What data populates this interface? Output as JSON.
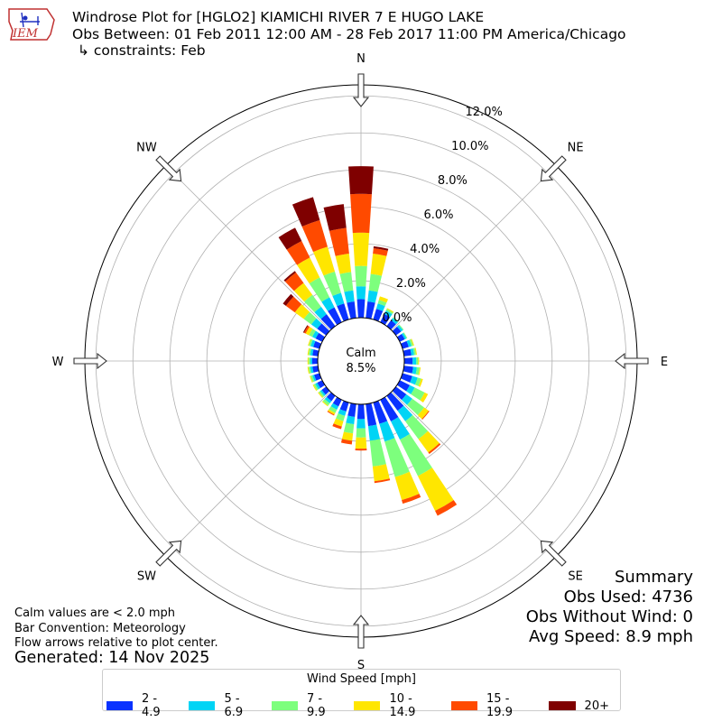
{
  "header": {
    "line1": "Windrose Plot for [HGLO2] KIAMICHI RIVER 7 E HUGO LAKE",
    "line2": "Obs Between: 01 Feb 2011 12:00 AM - 28 Feb 2017 11:00 PM America/Chicago",
    "line3": "↳ constraints: Feb"
  },
  "logo": {
    "text": "IEM",
    "icon": "iowa-state-outline-icon"
  },
  "center": {
    "label": "Calm",
    "value": "8.5%"
  },
  "notes": {
    "calm": "Calm values are < 2.0 mph",
    "convention": "Bar Convention: Meteorology",
    "flow": "Flow arrows relative to plot center.",
    "generated": "Generated: 14 Nov 2025"
  },
  "summary": {
    "title": "Summary",
    "obs_used": "Obs Used: 4736",
    "obs_without_wind": "Obs Without Wind: 0",
    "avg_speed": "Avg Speed: 8.9 mph"
  },
  "legend": {
    "title": "Wind Speed [mph]",
    "items": [
      {
        "label": "2 - 4.9",
        "color": "#0a32ff"
      },
      {
        "label": "5 - 6.9",
        "color": "#00d4f5"
      },
      {
        "label": "7 - 9.9",
        "color": "#7dff7d"
      },
      {
        "label": "10 - 14.9",
        "color": "#ffe600"
      },
      {
        "label": "15 - 19.9",
        "color": "#ff4a00"
      },
      {
        "label": "20+",
        "color": "#7f0000"
      }
    ]
  },
  "chart_data": {
    "type": "windrose",
    "radial_ticks": [
      "0.0%",
      "2.0%",
      "4.0%",
      "6.0%",
      "8.0%",
      "10.0%",
      "12.0%"
    ],
    "radial_range": [
      0,
      12.6
    ],
    "radial_units": "%",
    "directions": [
      "N",
      "NE",
      "E",
      "SE",
      "S",
      "SW",
      "W",
      "NW"
    ],
    "bins": [
      "2 - 4.9",
      "5 - 6.9",
      "7 - 9.9",
      "10 - 14.9",
      "15 - 19.9",
      "20+"
    ],
    "colors": [
      "#0a32ff",
      "#00d4f5",
      "#7dff7d",
      "#ffe600",
      "#ff4a00",
      "#7f0000"
    ],
    "sectors": [
      {
        "dir": 0,
        "values": [
          1.0,
          0.7,
          1.1,
          1.8,
          2.1,
          1.5
        ]
      },
      {
        "dir": 10,
        "values": [
          0.9,
          0.6,
          0.9,
          1.1,
          0.3,
          0.1
        ]
      },
      {
        "dir": 20,
        "values": [
          0.6,
          0.3,
          0.2,
          0.2,
          0.0,
          0.0
        ]
      },
      {
        "dir": 30,
        "values": [
          0.5,
          0.2,
          0.1,
          0.05,
          0.0,
          0.0
        ]
      },
      {
        "dir": 40,
        "values": [
          0.4,
          0.15,
          0.05,
          0.0,
          0.0,
          0.0
        ]
      },
      {
        "dir": 50,
        "values": [
          0.35,
          0.12,
          0.05,
          0.0,
          0.0,
          0.0
        ]
      },
      {
        "dir": 60,
        "values": [
          0.3,
          0.1,
          0.05,
          0.0,
          0.0,
          0.0
        ]
      },
      {
        "dir": 70,
        "values": [
          0.35,
          0.15,
          0.1,
          0.05,
          0.0,
          0.0
        ]
      },
      {
        "dir": 80,
        "values": [
          0.4,
          0.15,
          0.1,
          0.05,
          0.0,
          0.0
        ]
      },
      {
        "dir": 90,
        "values": [
          0.45,
          0.2,
          0.1,
          0.05,
          0.0,
          0.0
        ]
      },
      {
        "dir": 100,
        "values": [
          0.5,
          0.2,
          0.15,
          0.05,
          0.0,
          0.0
        ]
      },
      {
        "dir": 110,
        "values": [
          0.55,
          0.3,
          0.2,
          0.1,
          0.0,
          0.0
        ]
      },
      {
        "dir": 120,
        "values": [
          0.6,
          0.3,
          0.6,
          0.2,
          0.0,
          0.0
        ]
      },
      {
        "dir": 130,
        "values": [
          0.7,
          0.4,
          0.8,
          0.3,
          0.05,
          0.0
        ]
      },
      {
        "dir": 140,
        "values": [
          1.0,
          0.7,
          1.2,
          0.9,
          0.1,
          0.0
        ]
      },
      {
        "dir": 150,
        "values": [
          1.3,
          1.1,
          2.2,
          2.1,
          0.3,
          0.0
        ]
      },
      {
        "dir": 160,
        "values": [
          1.2,
          1.0,
          2.0,
          1.3,
          0.2,
          0.0
        ]
      },
      {
        "dir": 170,
        "values": [
          1.2,
          0.8,
          1.4,
          0.8,
          0.1,
          0.0
        ]
      },
      {
        "dir": 180,
        "values": [
          0.8,
          0.5,
          0.5,
          0.6,
          0.1,
          0.0
        ]
      },
      {
        "dir": 190,
        "values": [
          0.7,
          0.4,
          0.5,
          0.4,
          0.2,
          0.0
        ]
      },
      {
        "dir": 200,
        "values": [
          0.5,
          0.25,
          0.3,
          0.3,
          0.15,
          0.0
        ]
      },
      {
        "dir": 210,
        "values": [
          0.4,
          0.2,
          0.2,
          0.1,
          0.05,
          0.0
        ]
      },
      {
        "dir": 220,
        "values": [
          0.35,
          0.15,
          0.15,
          0.05,
          0.0,
          0.0
        ]
      },
      {
        "dir": 230,
        "values": [
          0.3,
          0.1,
          0.1,
          0.05,
          0.0,
          0.0
        ]
      },
      {
        "dir": 240,
        "values": [
          0.3,
          0.12,
          0.1,
          0.05,
          0.0,
          0.0
        ]
      },
      {
        "dir": 250,
        "values": [
          0.3,
          0.1,
          0.1,
          0.05,
          0.0,
          0.0
        ]
      },
      {
        "dir": 260,
        "values": [
          0.3,
          0.12,
          0.1,
          0.05,
          0.0,
          0.0
        ]
      },
      {
        "dir": 270,
        "values": [
          0.3,
          0.1,
          0.1,
          0.05,
          0.0,
          0.0
        ]
      },
      {
        "dir": 280,
        "values": [
          0.3,
          0.12,
          0.1,
          0.05,
          0.0,
          0.0
        ]
      },
      {
        "dir": 290,
        "values": [
          0.35,
          0.15,
          0.1,
          0.05,
          0.0,
          0.0
        ]
      },
      {
        "dir": 300,
        "values": [
          0.4,
          0.2,
          0.2,
          0.2,
          0.1,
          0.05
        ]
      },
      {
        "dir": 310,
        "values": [
          0.6,
          0.4,
          0.5,
          0.6,
          0.6,
          0.2
        ]
      },
      {
        "dir": 320,
        "values": [
          0.8,
          0.5,
          0.8,
          0.8,
          0.7,
          0.1
        ]
      },
      {
        "dir": 330,
        "values": [
          0.9,
          0.6,
          1.2,
          1.2,
          1.0,
          0.8
        ]
      },
      {
        "dir": 340,
        "values": [
          0.9,
          0.6,
          1.2,
          1.4,
          1.5,
          1.3
        ]
      },
      {
        "dir": 350,
        "values": [
          0.9,
          0.6,
          1.0,
          1.0,
          1.4,
          1.3
        ]
      }
    ]
  }
}
